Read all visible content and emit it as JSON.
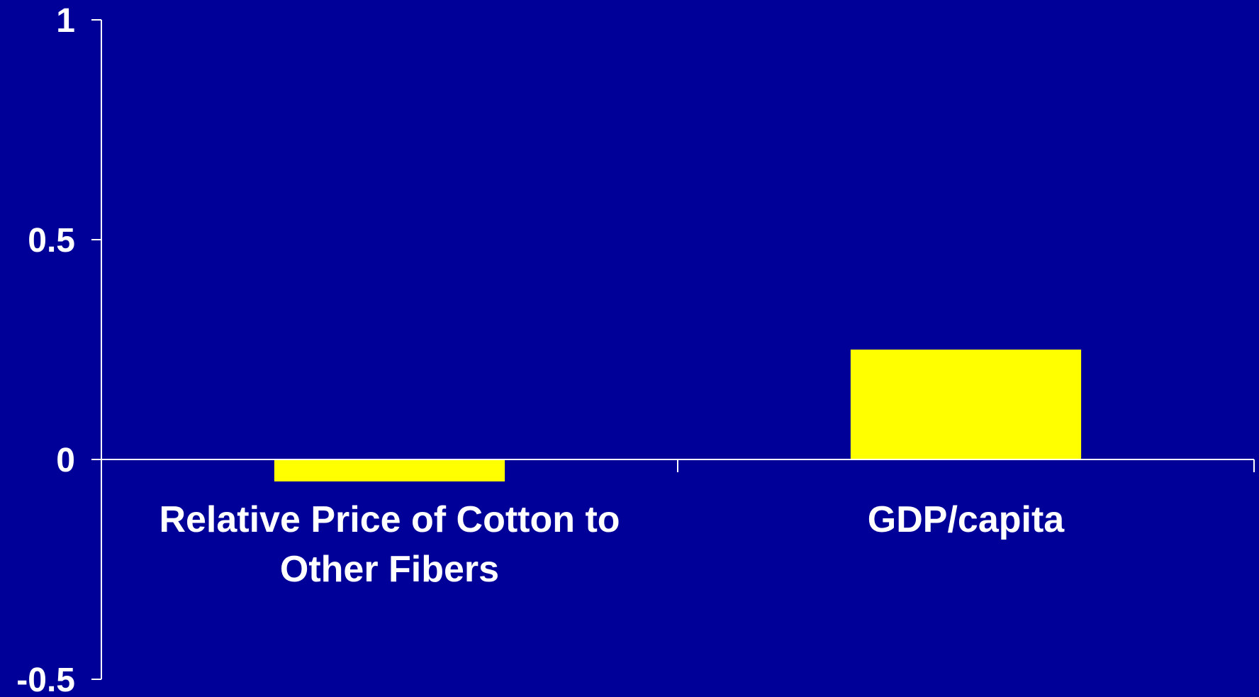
{
  "chart_data": {
    "type": "bar",
    "categories": [
      [
        "Relative Price of Cotton to",
        "Other Fibers"
      ],
      [
        "GDP/capita"
      ]
    ],
    "values": [
      -0.05,
      0.25
    ],
    "ylim": [
      -0.5,
      1
    ],
    "yticks": [
      1,
      0.5,
      0,
      -0.5
    ],
    "ytick_labels": [
      "1",
      "0.5",
      "0",
      "-0.5"
    ],
    "grid": false,
    "legend": "none",
    "colors": {
      "background": "#000099",
      "bar": "#FFFF00",
      "axis": "#FFFFFF",
      "text": "#FFFFFF"
    }
  }
}
